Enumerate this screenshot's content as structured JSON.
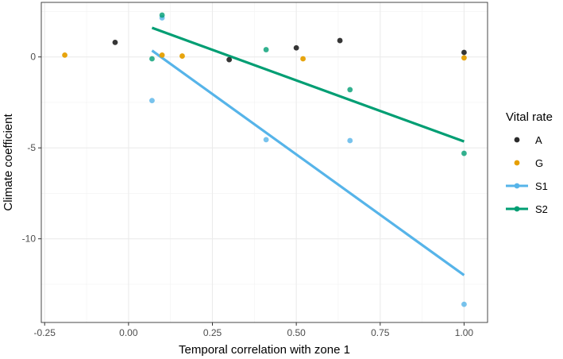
{
  "chart_data": {
    "type": "scatter",
    "xlabel": "Temporal correlation with zone 1",
    "ylabel": "Climate coefficient",
    "xlim": [
      -0.26,
      1.07
    ],
    "ylim": [
      -14.6,
      3.0
    ],
    "xticks": [
      -0.25,
      0.0,
      0.25,
      0.5,
      0.75,
      1.0
    ],
    "xtick_labels": [
      "-0.25",
      "0.00",
      "0.25",
      "0.50",
      "0.75",
      "1.00"
    ],
    "yticks": [
      0,
      -5,
      -10
    ],
    "ytick_labels": [
      "0",
      "-5",
      "-10"
    ],
    "grid": true,
    "legend": {
      "title": "Vital rate",
      "position": "right"
    },
    "series": [
      {
        "name": "A",
        "color": "#2b2b2b",
        "fit": false,
        "x": [
          -0.04,
          0.3,
          0.5,
          0.63,
          1.0
        ],
        "y": [
          0.8,
          -0.15,
          0.5,
          0.9,
          0.25
        ]
      },
      {
        "name": "G",
        "color": "#e69f00",
        "fit": false,
        "x": [
          -0.19,
          0.1,
          0.16,
          0.52,
          1.0
        ],
        "y": [
          0.1,
          0.1,
          0.05,
          -0.1,
          -0.05
        ]
      },
      {
        "name": "S1",
        "color": "#56b4e9",
        "fit": true,
        "x": [
          0.07,
          0.1,
          0.41,
          0.66,
          1.0
        ],
        "y": [
          -2.4,
          2.15,
          -4.55,
          -4.6,
          -13.6
        ],
        "fit_line": {
          "x": [
            0.07,
            1.0
          ],
          "y": [
            0.35,
            -12.0
          ]
        }
      },
      {
        "name": "S2",
        "color": "#009e73",
        "fit": true,
        "x": [
          0.07,
          0.1,
          0.41,
          0.66,
          1.0
        ],
        "y": [
          -0.1,
          2.3,
          0.4,
          -1.8,
          -5.3
        ],
        "fit_line": {
          "x": [
            0.07,
            1.0
          ],
          "y": [
            1.6,
            -4.65
          ]
        }
      }
    ]
  }
}
